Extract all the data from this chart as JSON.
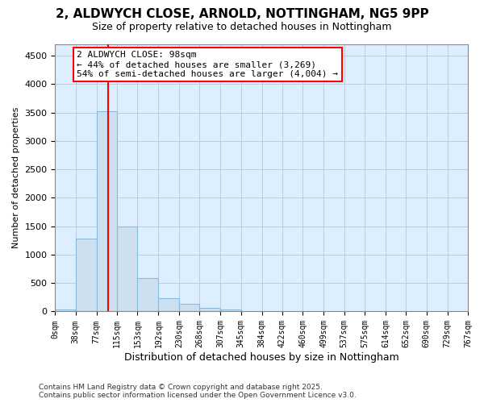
{
  "title_line1": "2, ALDWYCH CLOSE, ARNOLD, NOTTINGHAM, NG5 9PP",
  "title_line2": "Size of property relative to detached houses in Nottingham",
  "xlabel": "Distribution of detached houses by size in Nottingham",
  "ylabel": "Number of detached properties",
  "bins": [
    0,
    38,
    77,
    115,
    153,
    192,
    230,
    268,
    307,
    345,
    384,
    422,
    460,
    499,
    537,
    575,
    614,
    652,
    690,
    729,
    767
  ],
  "counts": [
    30,
    1280,
    3530,
    1490,
    590,
    240,
    130,
    70,
    30,
    0,
    0,
    0,
    0,
    0,
    0,
    0,
    0,
    0,
    0,
    0
  ],
  "bar_color": "#cce0f0",
  "bar_edgecolor": "#88bbdd",
  "grid_color": "#bbccdd",
  "plot_bg_color": "#ddeeff",
  "fig_bg_color": "#ffffff",
  "vline_x": 98,
  "vline_color": "red",
  "annotation_text": "2 ALDWYCH CLOSE: 98sqm\n← 44% of detached houses are smaller (3,269)\n54% of semi-detached houses are larger (4,004) →",
  "ylim": [
    0,
    4700
  ],
  "yticks": [
    0,
    500,
    1000,
    1500,
    2000,
    2500,
    3000,
    3500,
    4000,
    4500
  ],
  "tick_labels": [
    "0sqm",
    "38sqm",
    "77sqm",
    "115sqm",
    "153sqm",
    "192sqm",
    "230sqm",
    "268sqm",
    "307sqm",
    "345sqm",
    "384sqm",
    "422sqm",
    "460sqm",
    "499sqm",
    "537sqm",
    "575sqm",
    "614sqm",
    "652sqm",
    "690sqm",
    "729sqm",
    "767sqm"
  ],
  "footer": "Contains HM Land Registry data © Crown copyright and database right 2025.\nContains public sector information licensed under the Open Government Licence v3.0.",
  "title1_fontsize": 11,
  "title2_fontsize": 9,
  "xlabel_fontsize": 9,
  "ylabel_fontsize": 8,
  "tick_fontsize": 7,
  "footer_fontsize": 6.5,
  "ann_fontsize": 8
}
